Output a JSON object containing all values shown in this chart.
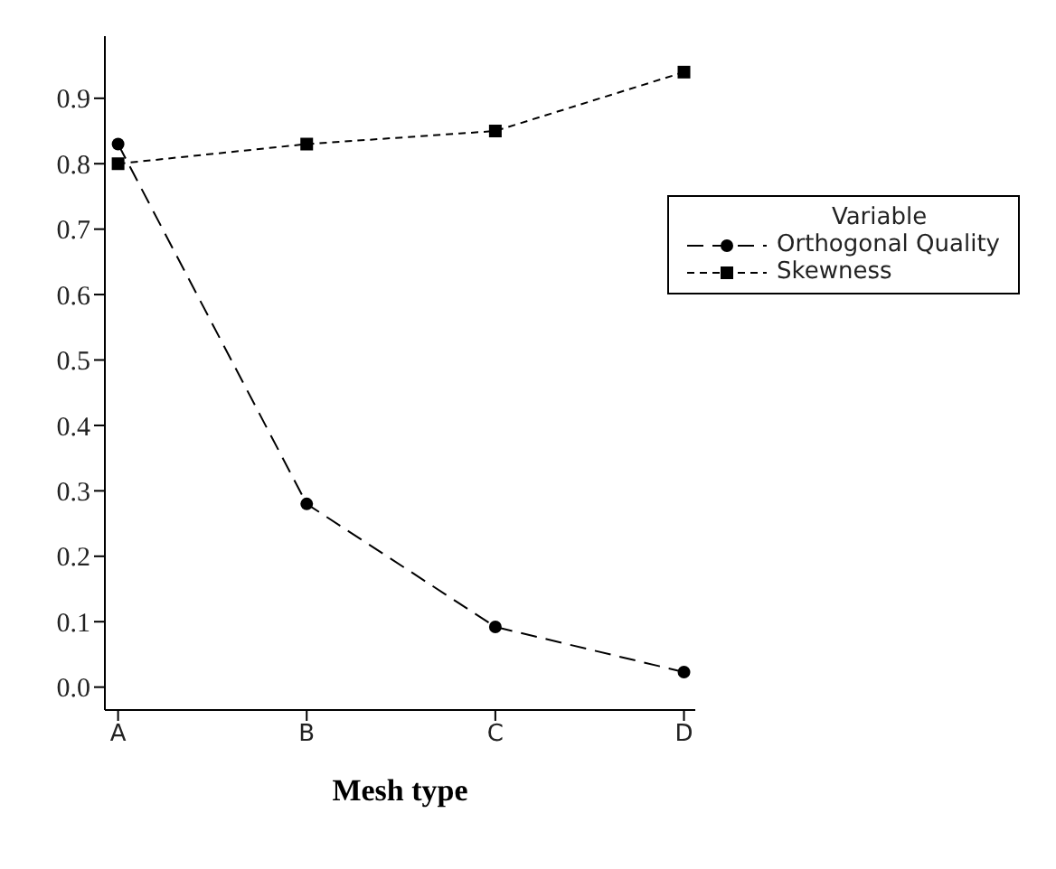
{
  "chart_data": {
    "type": "line",
    "xlabel": "Mesh type",
    "legend_title": "Variable",
    "categories": [
      "A",
      "B",
      "C",
      "D"
    ],
    "series": [
      {
        "name": "Orthogonal Quality",
        "color": "#000000",
        "marker": "circle",
        "line_style": "dashed",
        "values": [
          0.83,
          0.28,
          0.092,
          0.023
        ]
      },
      {
        "name": "Skewness",
        "color": "#000000",
        "marker": "square",
        "line_style": "dotted",
        "values": [
          0.8,
          0.83,
          0.85,
          0.94
        ]
      }
    ],
    "ylim": [
      -0.035,
      0.995
    ],
    "yticks": [
      {
        "value": 0,
        "label": "0.0"
      },
      0.1,
      0.2,
      0.3,
      0.4,
      0.5,
      0.6,
      0.7,
      0.8,
      0.9
    ],
    "grid": false,
    "legend": "top right"
  }
}
